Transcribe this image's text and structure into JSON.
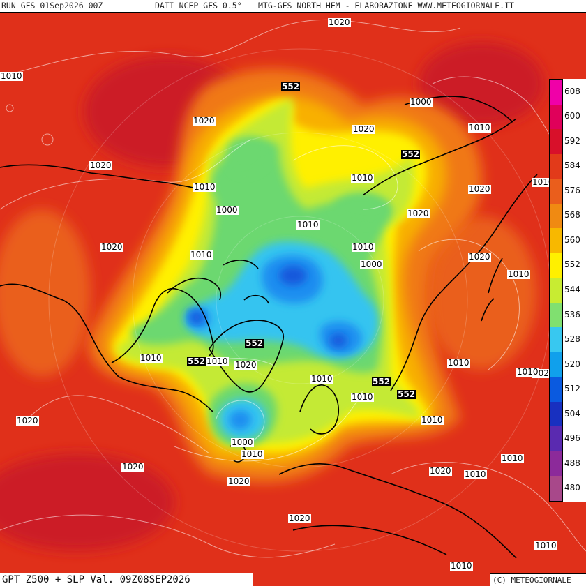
{
  "header": {
    "run": "RUN GFS 01Sep2026 00Z",
    "source": "DATI NCEP GFS 0.5°",
    "domain": "MTG-GFS NORTH HEM - ELABORAZIONE WWW.METEOGIORNALE.IT"
  },
  "footer": {
    "product": "GPT Z500 + SLP Val. 09Z08SEP2026",
    "copyright": "(C) METEOGIORNALE"
  },
  "legend": {
    "levels": [
      "608",
      "600",
      "592",
      "584",
      "576",
      "568",
      "560",
      "552",
      "544",
      "536",
      "528",
      "520",
      "512",
      "504",
      "496",
      "488",
      "480"
    ],
    "colors": [
      "#f000a8",
      "#e0005a",
      "#d8102a",
      "#e23a1a",
      "#ea5e1c",
      "#f08a12",
      "#f8b800",
      "#fff000",
      "#c8ec32",
      "#80e070",
      "#38c8f0",
      "#10a0ec",
      "#0a5ae0",
      "#1830c0",
      "#5a2ab0",
      "#8c2a9a",
      "#a8488a"
    ]
  },
  "slp_labels": [
    "1020",
    "1010",
    "1020",
    "1000",
    "1020",
    "1020",
    "1010",
    "1010",
    "1020",
    "1000",
    "1010",
    "1010",
    "1020",
    "1010",
    "1020",
    "1000",
    "1010",
    "1010",
    "1020",
    "1010",
    "1010",
    "1020",
    "1010",
    "1010",
    "1010",
    "1020",
    "1020",
    "1000",
    "1010",
    "1020",
    "1020",
    "1010",
    "1010",
    "1020",
    "1020",
    "1010",
    "1010",
    "1010",
    "1010",
    "1010"
  ],
  "gpt_labels": [
    "552",
    "552",
    "552",
    "552",
    "552",
    "552"
  ],
  "colors": {
    "outer": "#e0301a",
    "deep_red": "#cc1c28",
    "orange": "#f07818",
    "gold": "#f8b000",
    "yellow": "#fff200",
    "lime": "#c4ea36",
    "green": "#6cd870",
    "cyan": "#34c4f0",
    "blue": "#1c8ef0",
    "deep_blue": "#1458dc",
    "navy": "#1838c8"
  }
}
